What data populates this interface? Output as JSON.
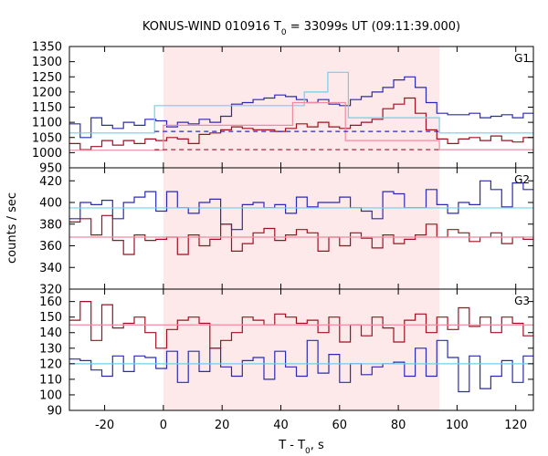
{
  "chart_data": {
    "type": "line",
    "title": "KONUS-WIND 010916 T",
    "title_sub": "0",
    "title_rest": " = 33099s UT (09:11:39.000)",
    "xlabel": "T - T",
    "xlabel_sub": "0",
    "xlabel_rest": ", s",
    "ylabel": "counts / sec",
    "xlim": [
      -32,
      126
    ],
    "xticks": [
      -20,
      0,
      20,
      40,
      60,
      80,
      100,
      120
    ],
    "highlight": {
      "x0": 0,
      "x1": 94,
      "color": "#fde8ea"
    },
    "colors": {
      "blue": "#2a2ab4",
      "red": "#a01020",
      "cyan": "#6fd0ee",
      "pink": "#f08ca0"
    },
    "panels": [
      {
        "label": "G1",
        "ylim": [
          950,
          1350
        ],
        "yticks": [
          950,
          1000,
          1050,
          1100,
          1150,
          1200,
          1250,
          1300,
          1350
        ],
        "bin_start": -32,
        "bin_width": 3.68,
        "series": [
          {
            "color": "blue",
            "values": [
              1095,
              1050,
              1115,
              1090,
              1080,
              1100,
              1090,
              1110,
              1105,
              1085,
              1100,
              1095,
              1110,
              1100,
              1120,
              1160,
              1165,
              1175,
              1180,
              1190,
              1185,
              1175,
              1165,
              1175,
              1160,
              1155,
              1175,
              1185,
              1200,
              1215,
              1240,
              1250,
              1215,
              1165,
              1130,
              1125,
              1125,
              1130,
              1115,
              1120,
              1125,
              1115,
              1130,
              1115,
              1100,
              1090,
              1070,
              1080,
              1085,
              1085,
              1080,
              1075,
              1120,
              1100,
              1090,
              1070,
              1050,
              1060,
              1065,
              1055,
              1055,
              1050,
              1060
            ]
          },
          {
            "color": "red",
            "values": [
              1030,
              1010,
              1020,
              1040,
              1025,
              1040,
              1030,
              1045,
              1040,
              1050,
              1045,
              1030,
              1060,
              1065,
              1075,
              1085,
              1080,
              1075,
              1075,
              1070,
              1080,
              1095,
              1085,
              1100,
              1085,
              1080,
              1090,
              1100,
              1110,
              1145,
              1160,
              1180,
              1130,
              1075,
              1045,
              1030,
              1045,
              1050,
              1040,
              1055,
              1040,
              1035,
              1050,
              1035,
              1050,
              1060,
              1030,
              1025,
              1040,
              1060,
              1025,
              1040,
              1045,
              1060,
              1070,
              1020,
              1035,
              1020,
              1005,
              1030,
              1010,
              1030,
              1015
            ]
          }
        ],
        "fit_step": {
          "color": "cyan",
          "x": [
            -32,
            -3,
            -3,
            48,
            48,
            56,
            56,
            63,
            63,
            94,
            94,
            126
          ],
          "y": [
            1065,
            1065,
            1155,
            1155,
            1200,
            1200,
            1265,
            1265,
            1115,
            1115,
            1065,
            1065
          ]
        },
        "fit_step_2": {
          "color": "pink",
          "x": [
            -32,
            0,
            0,
            44,
            44,
            62,
            62,
            94,
            94,
            126
          ],
          "y": [
            1008,
            1008,
            1090,
            1090,
            1165,
            1165,
            1040,
            1040,
            1010,
            1010
          ]
        },
        "bg_dashed": [
          {
            "color": "blue",
            "y": 1070,
            "x0": -3,
            "x1": 94
          },
          {
            "color": "red",
            "y": 1010,
            "x0": -3,
            "x1": 94
          }
        ]
      },
      {
        "label": "G2",
        "ylim": [
          320,
          432
        ],
        "yticks": [
          320,
          340,
          360,
          380,
          400,
          420
        ],
        "bin_start": -32,
        "bin_width": 3.68,
        "series": [
          {
            "color": "blue",
            "values": [
              385,
              400,
              398,
              402,
              385,
              400,
              405,
              410,
              392,
              410,
              395,
              390,
              400,
              403,
              380,
              375,
              398,
              400,
              395,
              398,
              390,
              405,
              396,
              400,
              400,
              405,
              395,
              392,
              385,
              410,
              408,
              395,
              395,
              412,
              398,
              390,
              400,
              398,
              420,
              412,
              396,
              418,
              412,
              395,
              388,
              405,
              395,
              390,
              392,
              410,
              380,
              395,
              395,
              393,
              388,
              410,
              393,
              370,
              410,
              392,
              380,
              400,
              378
            ]
          },
          {
            "color": "red",
            "values": [
              382,
              385,
              370,
              388,
              365,
              352,
              370,
              365,
              366,
              368,
              352,
              370,
              360,
              366,
              380,
              355,
              362,
              372,
              376,
              365,
              370,
              375,
              372,
              355,
              368,
              360,
              372,
              367,
              358,
              370,
              362,
              366,
              370,
              380,
              368,
              375,
              372,
              364,
              368,
              372,
              362,
              368,
              366,
              358,
              372,
              368,
              375,
              364,
              362,
              360,
              368,
              378,
              365,
              372,
              368,
              365,
              360,
              358,
              368,
              370,
              372,
              365,
              362
            ]
          }
        ],
        "fit_flat": [
          {
            "color": "cyan",
            "y": 395
          },
          {
            "color": "pink",
            "y": 368
          }
        ]
      },
      {
        "label": "G3",
        "ylim": [
          90,
          168
        ],
        "yticks": [
          90,
          100,
          110,
          120,
          130,
          140,
          150,
          160
        ],
        "bin_start": -32,
        "bin_width": 3.68,
        "series": [
          {
            "color": "blue",
            "values": [
              123,
              122,
              116,
              112,
              125,
              115,
              125,
              124,
              117,
              128,
              108,
              128,
              115,
              130,
              118,
              112,
              122,
              124,
              110,
              128,
              118,
              112,
              135,
              114,
              126,
              108,
              120,
              113,
              118,
              120,
              121,
              112,
              130,
              112,
              135,
              124,
              102,
              125,
              104,
              112,
              122,
              108,
              125,
              115,
              122,
              113,
              130,
              122,
              118,
              126,
              120,
              118,
              120,
              122,
              116,
              120,
              114,
              124,
              122,
              128,
              120,
              124,
              120
            ]
          },
          {
            "color": "red",
            "values": [
              148,
              160,
              135,
              158,
              143,
              146,
              150,
              140,
              130,
              142,
              148,
              150,
              146,
              130,
              135,
              140,
              150,
              148,
              145,
              152,
              150,
              146,
              148,
              140,
              150,
              134,
              145,
              138,
              150,
              143,
              134,
              148,
              152,
              140,
              150,
              142,
              156,
              144,
              150,
              140,
              150,
              146,
              138,
              152,
              146,
              150,
              155,
              140,
              150,
              146,
              128,
              146,
              148,
              138,
              148,
              150,
              142,
              152,
              150,
              146,
              145,
              150,
              148
            ]
          }
        ],
        "fit_flat": [
          {
            "color": "cyan",
            "y": 120
          },
          {
            "color": "pink",
            "y": 145
          }
        ]
      }
    ]
  }
}
